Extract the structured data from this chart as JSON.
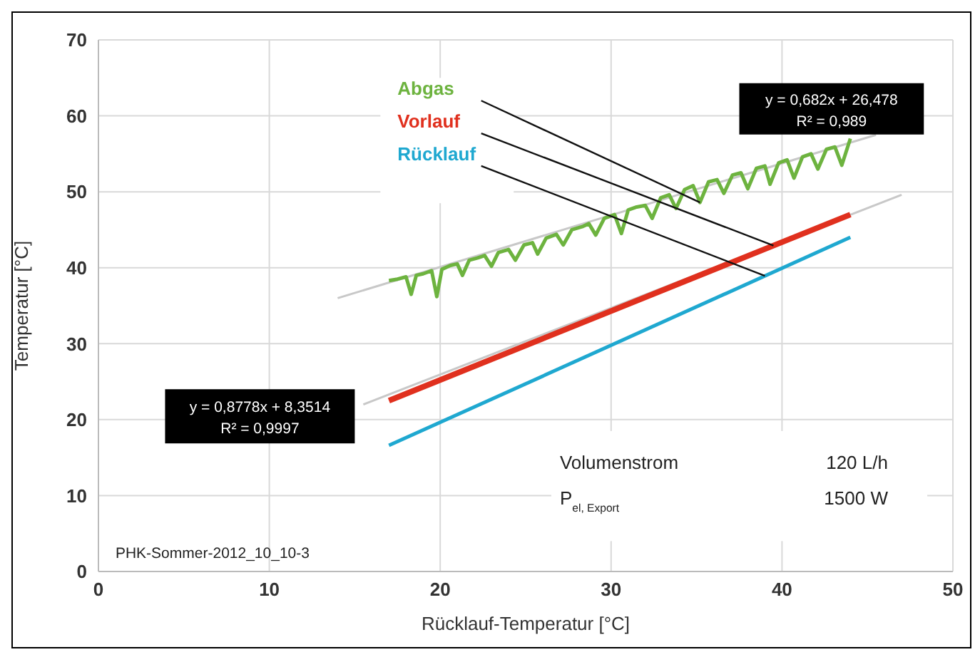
{
  "chart_data": {
    "type": "line",
    "xlabel": "Rücklauf-Temperatur [°C]",
    "ylabel": "Temperatur [°C]",
    "xlim": [
      0,
      50
    ],
    "xticks": [
      0,
      10,
      20,
      30,
      40,
      50
    ],
    "ylim": [
      0,
      70
    ],
    "yticks": [
      0,
      10,
      20,
      30,
      40,
      50,
      60,
      70
    ],
    "grid": true,
    "legend": false,
    "marker": "none",
    "line_style": "solid",
    "series": [
      {
        "name": "Abgas",
        "color": "#6db33f",
        "x": [
          17,
          17.5,
          18,
          18.3,
          18.6,
          19,
          19.5,
          19.8,
          20.1,
          20.6,
          21,
          21.3,
          21.7,
          22.2,
          22.6,
          23,
          23.4,
          24,
          24.4,
          24.9,
          25.4,
          25.7,
          26.2,
          26.8,
          27.2,
          27.7,
          28.3,
          28.7,
          29.1,
          29.6,
          30.2,
          30.6,
          31,
          31.5,
          32,
          32.4,
          32.9,
          33.4,
          33.8,
          34.3,
          34.8,
          35.2,
          35.7,
          36.2,
          36.6,
          37.1,
          37.6,
          38,
          38.5,
          39,
          39.3,
          39.8,
          40.3,
          40.7,
          41.2,
          41.7,
          42.1,
          42.6,
          43.1,
          43.5,
          44
        ],
        "values": [
          38.3,
          38.5,
          38.8,
          36.5,
          39,
          39.2,
          39.6,
          36.2,
          39.8,
          40.3,
          40.5,
          39,
          41,
          41.3,
          41.6,
          40.2,
          42,
          42.4,
          41,
          43,
          43.3,
          41.8,
          43.9,
          44.4,
          43,
          45,
          45.4,
          45.8,
          44.3,
          46.5,
          47,
          44.5,
          47.6,
          48,
          48.2,
          46.5,
          49.2,
          49.6,
          47.8,
          50.3,
          50.8,
          48.6,
          51.3,
          51.6,
          49.8,
          52.2,
          52.5,
          50.4,
          53.1,
          53.4,
          51,
          53.8,
          54.2,
          51.8,
          54.6,
          55,
          53,
          55.6,
          55.9,
          53.5,
          57
        ]
      },
      {
        "name": "Vorlauf",
        "color": "#e0301e",
        "x": [
          17,
          44
        ],
        "values": [
          22.5,
          47
        ]
      },
      {
        "name": "Rücklauf",
        "color": "#1fa8d0",
        "x": [
          17,
          44
        ],
        "values": [
          16.6,
          44
        ]
      },
      {
        "color": "#c8c8c8",
        "x": [
          14,
          45.5
        ],
        "values": [
          36,
          57.5
        ]
      },
      {
        "color": "#c8c8c8",
        "x": [
          15.5,
          47
        ],
        "values": [
          22,
          49.6
        ]
      }
    ],
    "annotations": [
      "y = 0,682x + 26,478",
      "R² = 0,989",
      "y = 0,8778x + 8,3514",
      "R² = 0,9997",
      "Volumenstrom",
      "120 L/h",
      "P$_{el, Export}$",
      "1500 W",
      "PHK-Sommer-2012_10_10-3"
    ]
  }
}
